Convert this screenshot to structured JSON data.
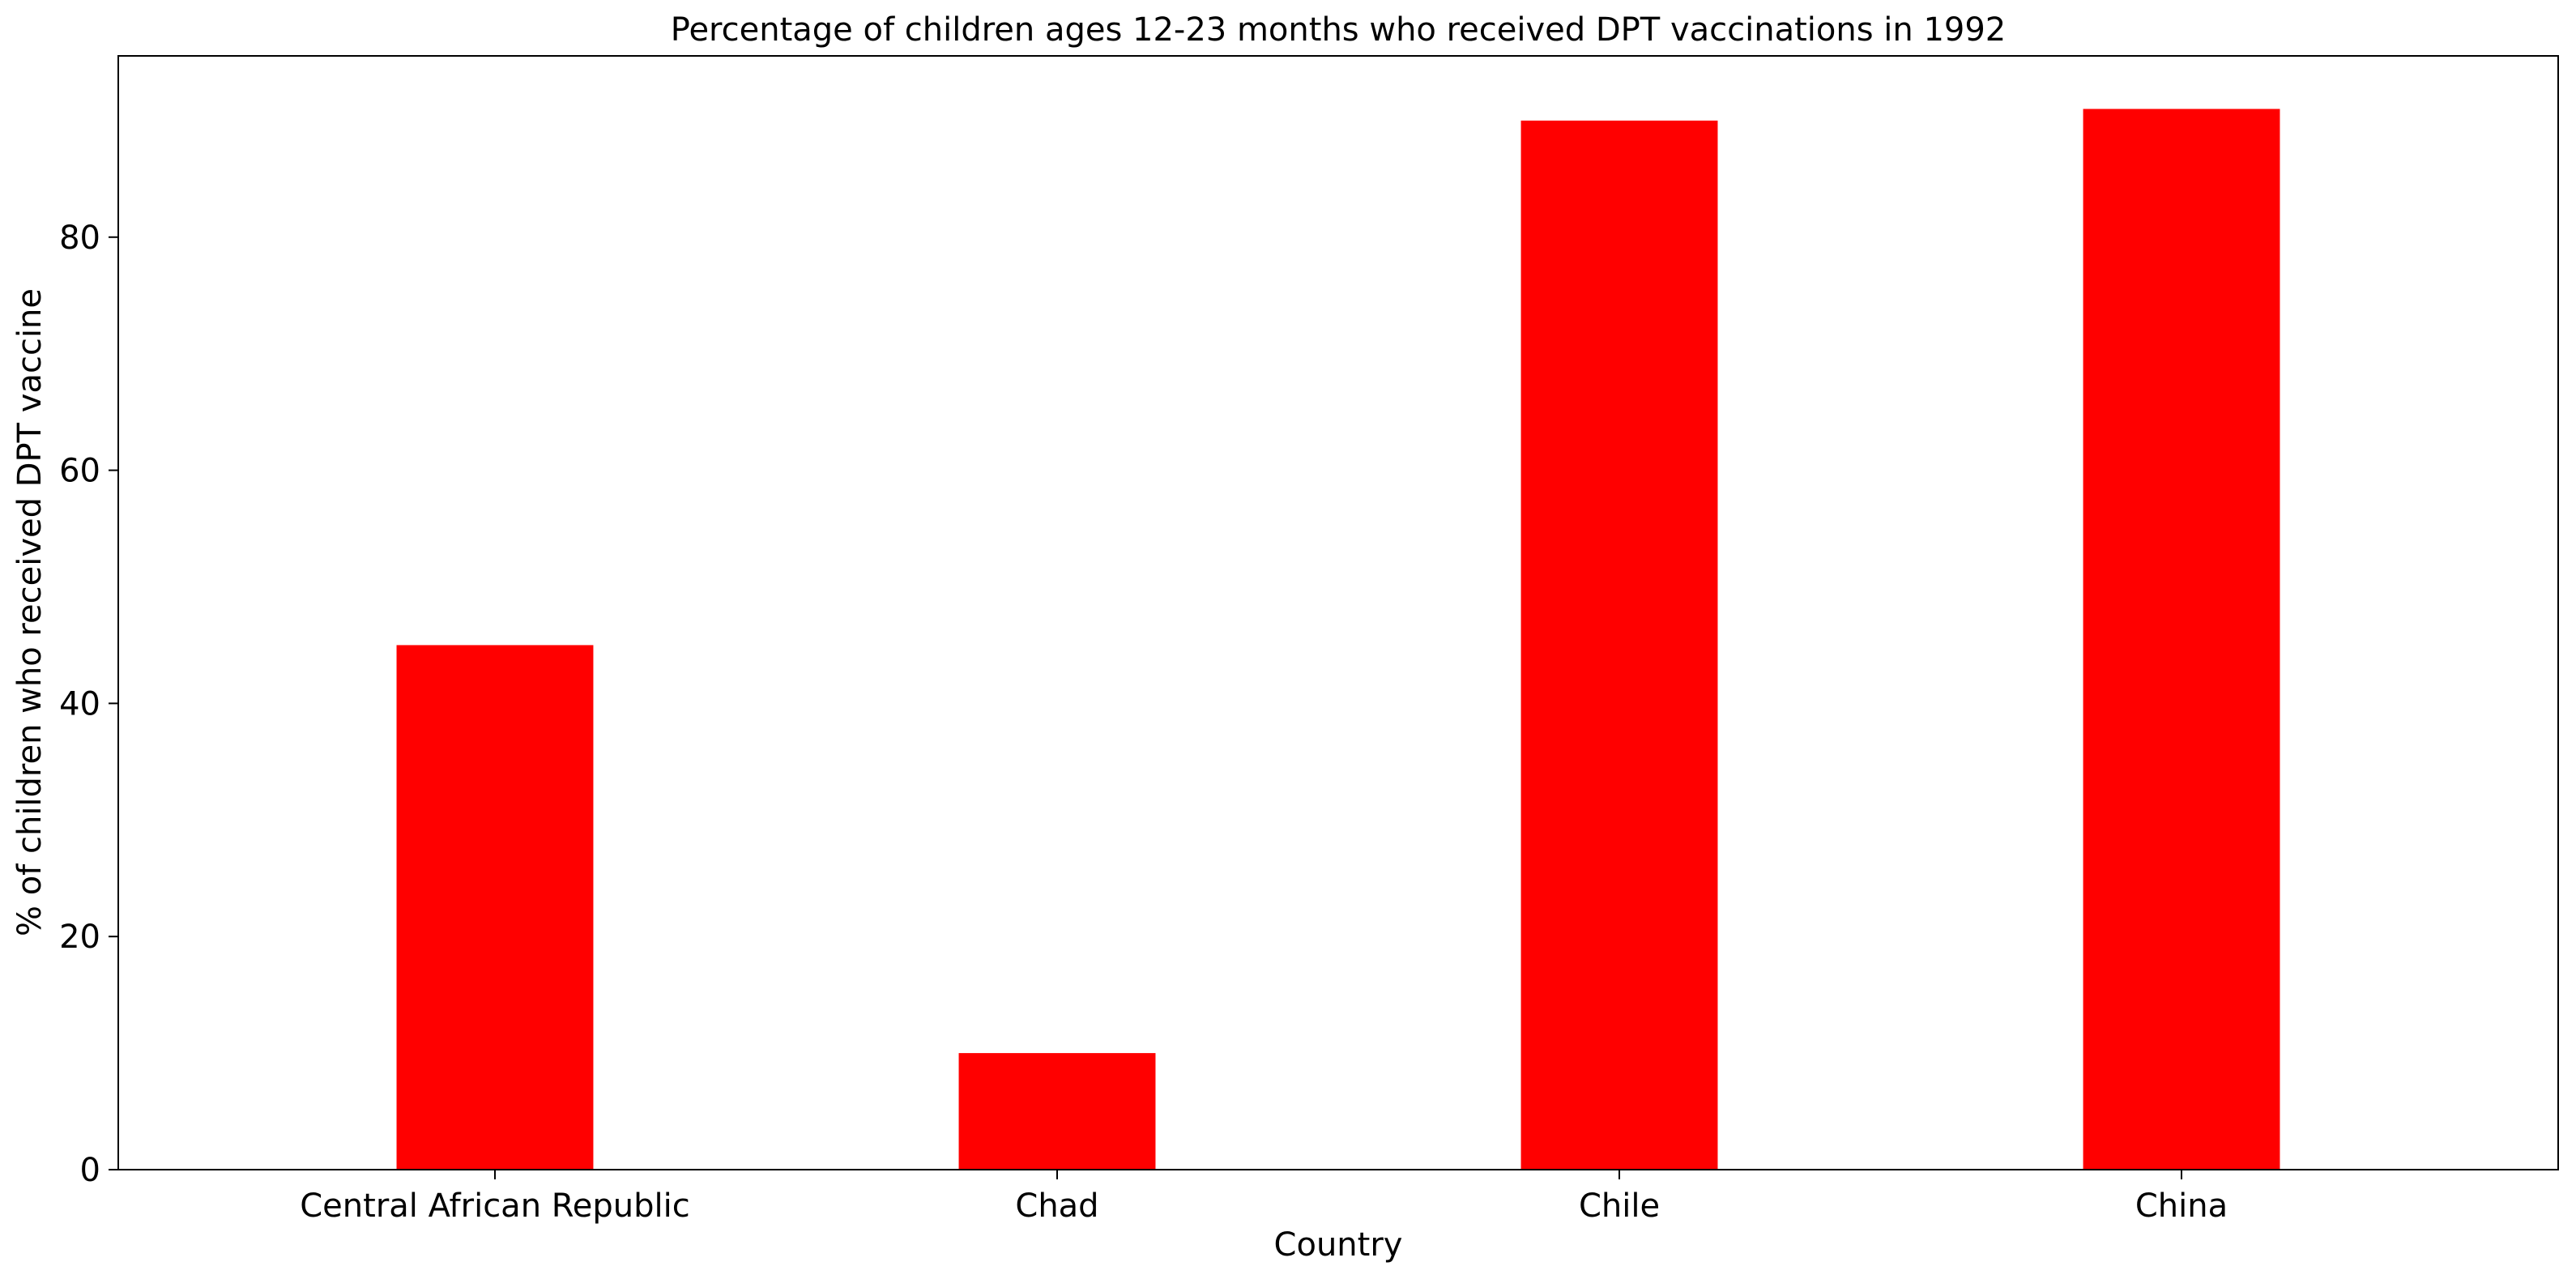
{
  "chart_data": {
    "type": "bar",
    "title": "Percentage of children ages 12-23 months who received DPT vaccinations in 1992",
    "xlabel": "Country",
    "ylabel": "% of children who received DPT vaccine",
    "categories": [
      "Central African Republic",
      "Chad",
      "Chile",
      "China"
    ],
    "values": [
      45,
      10,
      90,
      91
    ],
    "ylim": [
      0,
      95.55
    ],
    "yticks": [
      0,
      20,
      40,
      60,
      80
    ],
    "grid": false,
    "legend": "none",
    "bar_color": "#ff0000"
  }
}
